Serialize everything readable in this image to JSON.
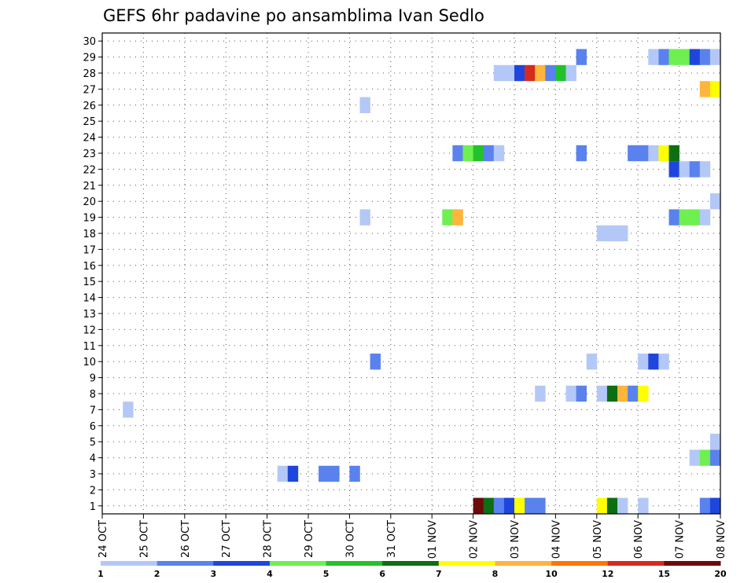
{
  "chart_data": {
    "type": "heatmap",
    "title": "GEFS 6hr padavine po ansamblima Ivan Sedlo",
    "xlabel": "",
    "ylabel": "",
    "x_tick_labels": [
      "24 OCT",
      "25 OCT",
      "26 OCT",
      "27 OCT",
      "28 OCT",
      "29 OCT",
      "30 OCT",
      "31 OCT",
      "01 NOV",
      "02 NOV",
      "03 NOV",
      "04 NOV",
      "05 NOV",
      "06 NOV",
      "07 NOV",
      "08 NOV"
    ],
    "y_tick_labels": [
      "1",
      "2",
      "3",
      "4",
      "5",
      "6",
      "7",
      "8",
      "9",
      "10",
      "11",
      "12",
      "13",
      "14",
      "15",
      "16",
      "17",
      "18",
      "19",
      "20",
      "21",
      "22",
      "23",
      "24",
      "25",
      "26",
      "27",
      "28",
      "29",
      "30"
    ],
    "ylim": [
      1,
      30
    ],
    "x_steps_per_day": 4,
    "grid": true,
    "legend_position": "bottom",
    "legend": {
      "colors": [
        "#b4c8f8",
        "#5a82ee",
        "#1f46dc",
        "#6ef050",
        "#22c22a",
        "#0e6e12",
        "#ffff00",
        "#ffb43c",
        "#ff7800",
        "#d72a1e",
        "#6e0a0a"
      ],
      "labels": [
        "1",
        "2",
        "3",
        "4",
        "5",
        "6",
        "7",
        "8",
        "10",
        "12",
        "15",
        "20"
      ]
    },
    "cells": [
      {
        "m": 1,
        "t": 36,
        "c": 10
      },
      {
        "m": 1,
        "t": 37,
        "c": 5
      },
      {
        "m": 1,
        "t": 38,
        "c": 1
      },
      {
        "m": 1,
        "t": 39,
        "c": 2
      },
      {
        "m": 1,
        "t": 40,
        "c": 6
      },
      {
        "m": 1,
        "t": 41,
        "c": 1
      },
      {
        "m": 1,
        "t": 42,
        "c": 1
      },
      {
        "m": 1,
        "t": 48,
        "c": 6
      },
      {
        "m": 1,
        "t": 49,
        "c": 5
      },
      {
        "m": 1,
        "t": 50,
        "c": 0
      },
      {
        "m": 1,
        "t": 52,
        "c": 0
      },
      {
        "m": 1,
        "t": 58,
        "c": 1
      },
      {
        "m": 1,
        "t": 59,
        "c": 2
      },
      {
        "m": 3,
        "t": 17,
        "c": 0
      },
      {
        "m": 3,
        "t": 18,
        "c": 2
      },
      {
        "m": 3,
        "t": 21,
        "c": 1
      },
      {
        "m": 3,
        "t": 22,
        "c": 1
      },
      {
        "m": 3,
        "t": 24,
        "c": 1
      },
      {
        "m": 4,
        "t": 57,
        "c": 0
      },
      {
        "m": 4,
        "t": 58,
        "c": 3
      },
      {
        "m": 4,
        "t": 59,
        "c": 1
      },
      {
        "m": 5,
        "t": 59,
        "c": 0
      },
      {
        "m": 7,
        "t": 2,
        "c": 0
      },
      {
        "m": 8,
        "t": 42,
        "c": 0
      },
      {
        "m": 8,
        "t": 45,
        "c": 0
      },
      {
        "m": 8,
        "t": 46,
        "c": 1
      },
      {
        "m": 8,
        "t": 48,
        "c": 0
      },
      {
        "m": 8,
        "t": 49,
        "c": 5
      },
      {
        "m": 8,
        "t": 50,
        "c": 7
      },
      {
        "m": 8,
        "t": 51,
        "c": 1
      },
      {
        "m": 8,
        "t": 52,
        "c": 6
      },
      {
        "m": 10,
        "t": 26,
        "c": 1
      },
      {
        "m": 10,
        "t": 47,
        "c": 0
      },
      {
        "m": 10,
        "t": 52,
        "c": 0
      },
      {
        "m": 10,
        "t": 53,
        "c": 2
      },
      {
        "m": 10,
        "t": 54,
        "c": 0
      },
      {
        "m": 18,
        "t": 48,
        "c": 0
      },
      {
        "m": 18,
        "t": 49,
        "c": 0
      },
      {
        "m": 18,
        "t": 50,
        "c": 0
      },
      {
        "m": 19,
        "t": 25,
        "c": 0
      },
      {
        "m": 19,
        "t": 33,
        "c": 3
      },
      {
        "m": 19,
        "t": 34,
        "c": 7
      },
      {
        "m": 19,
        "t": 55,
        "c": 1
      },
      {
        "m": 19,
        "t": 56,
        "c": 3
      },
      {
        "m": 19,
        "t": 57,
        "c": 3
      },
      {
        "m": 19,
        "t": 58,
        "c": 0
      },
      {
        "m": 20,
        "t": 59,
        "c": 0
      },
      {
        "m": 22,
        "t": 55,
        "c": 2
      },
      {
        "m": 22,
        "t": 56,
        "c": 0
      },
      {
        "m": 22,
        "t": 57,
        "c": 1
      },
      {
        "m": 22,
        "t": 58,
        "c": 0
      },
      {
        "m": 23,
        "t": 34,
        "c": 1
      },
      {
        "m": 23,
        "t": 35,
        "c": 3
      },
      {
        "m": 23,
        "t": 36,
        "c": 4
      },
      {
        "m": 23,
        "t": 37,
        "c": 1
      },
      {
        "m": 23,
        "t": 38,
        "c": 0
      },
      {
        "m": 23,
        "t": 46,
        "c": 1
      },
      {
        "m": 23,
        "t": 51,
        "c": 1
      },
      {
        "m": 23,
        "t": 52,
        "c": 1
      },
      {
        "m": 23,
        "t": 53,
        "c": 0
      },
      {
        "m": 23,
        "t": 54,
        "c": 6
      },
      {
        "m": 23,
        "t": 55,
        "c": 5
      },
      {
        "m": 26,
        "t": 25,
        "c": 0
      },
      {
        "m": 27,
        "t": 58,
        "c": 7
      },
      {
        "m": 27,
        "t": 59,
        "c": 6
      },
      {
        "m": 28,
        "t": 38,
        "c": 0
      },
      {
        "m": 28,
        "t": 39,
        "c": 0
      },
      {
        "m": 28,
        "t": 40,
        "c": 2
      },
      {
        "m": 28,
        "t": 41,
        "c": 9
      },
      {
        "m": 28,
        "t": 42,
        "c": 7
      },
      {
        "m": 28,
        "t": 43,
        "c": 1
      },
      {
        "m": 28,
        "t": 44,
        "c": 4
      },
      {
        "m": 28,
        "t": 45,
        "c": 0
      },
      {
        "m": 29,
        "t": 46,
        "c": 1
      },
      {
        "m": 29,
        "t": 53,
        "c": 0
      },
      {
        "m": 29,
        "t": 54,
        "c": 1
      },
      {
        "m": 29,
        "t": 55,
        "c": 3
      },
      {
        "m": 29,
        "t": 56,
        "c": 3
      },
      {
        "m": 29,
        "t": 57,
        "c": 2
      },
      {
        "m": 29,
        "t": 58,
        "c": 1
      },
      {
        "m": 29,
        "t": 59,
        "c": 0
      }
    ]
  }
}
